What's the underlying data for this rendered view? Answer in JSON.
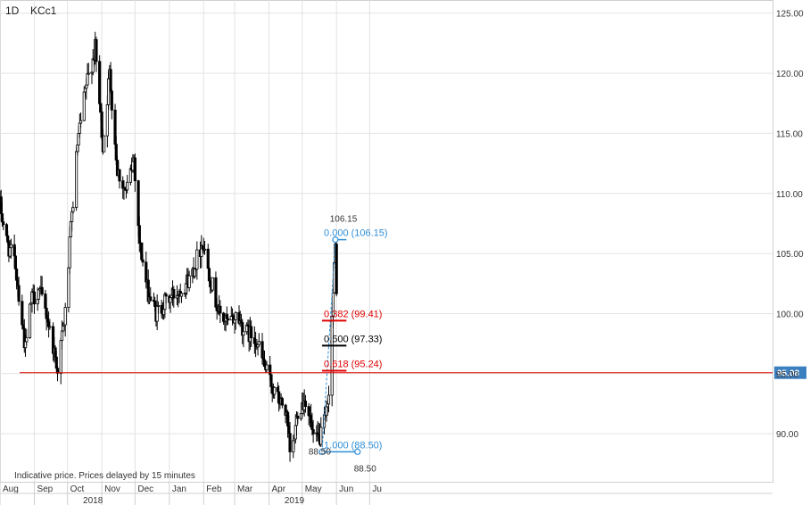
{
  "header": {
    "timeframe": "1D",
    "symbol": "KCc1"
  },
  "footer_note": "Indicative price. Prices delayed by 15 minutes",
  "colors": {
    "grid": "#e3e3e3",
    "candle": "#000000",
    "support": "#e00000",
    "fib_blue": "#2f8fd8",
    "fib_red": "#e00000",
    "fib_black": "#000000",
    "price_badge": "#3a7fc0"
  },
  "chart_data": {
    "type": "candlestick",
    "title": "",
    "x_start": "2017-08-01",
    "x_end": "2019-06-30",
    "ylim": [
      86,
      125.5
    ],
    "y_ticks": [
      "90.00",
      "95.00",
      "100.00",
      "105.00",
      "110.00",
      "115.00",
      "120.00",
      "125.00"
    ],
    "x_ticks": [
      {
        "date": "2017-08-01",
        "label": "Aug"
      },
      {
        "date": "2017-09-01",
        "label": "Sep"
      },
      {
        "date": "2017-10-01",
        "label": "Oct"
      },
      {
        "date": "2017-11-01",
        "label": "Nov"
      },
      {
        "date": "2017-12-01",
        "label": "Dec"
      },
      {
        "date": "2018-01-01",
        "label": "Jan"
      },
      {
        "date": "2018-02-01",
        "label": "Feb"
      },
      {
        "date": "2018-03-01",
        "label": "Mar"
      },
      {
        "date": "2018-04-01",
        "label": "Apr"
      },
      {
        "date": "2018-05-01",
        "label": "May"
      },
      {
        "date": "2018-06-01",
        "label": "Jun"
      },
      {
        "date": "2018-07-01",
        "label": "Ju"
      }
    ],
    "year_labels": [
      {
        "date": "2017-10-15",
        "label": "2018"
      },
      {
        "date": "2018-04-15",
        "label": "2019"
      }
    ],
    "price_path": [
      [
        "2017-08-01",
        109
      ],
      [
        "2017-08-07",
        106
      ],
      [
        "2017-08-15",
        104
      ],
      [
        "2017-08-24",
        97
      ],
      [
        "2017-08-29",
        101
      ],
      [
        "2017-09-05",
        102
      ],
      [
        "2017-09-12",
        100
      ],
      [
        "2017-09-22",
        95.5
      ],
      [
        "2017-09-29",
        100
      ],
      [
        "2017-10-04",
        107
      ],
      [
        "2017-10-10",
        114
      ],
      [
        "2017-10-18",
        119
      ],
      [
        "2017-10-26",
        122
      ],
      [
        "2017-11-02",
        114
      ],
      [
        "2017-11-08",
        120
      ],
      [
        "2017-11-15",
        112
      ],
      [
        "2017-11-23",
        110
      ],
      [
        "2017-11-30",
        113
      ],
      [
        "2017-12-05",
        106
      ],
      [
        "2017-12-12",
        102
      ],
      [
        "2017-12-20",
        100
      ],
      [
        "2017-12-29",
        101
      ],
      [
        "2018-01-10",
        102
      ],
      [
        "2018-01-20",
        103
      ],
      [
        "2018-01-31",
        106
      ],
      [
        "2018-02-07",
        103
      ],
      [
        "2018-02-15",
        100
      ],
      [
        "2018-02-24",
        99
      ],
      [
        "2018-03-03",
        100
      ],
      [
        "2018-03-10",
        98.5
      ],
      [
        "2018-03-20",
        98
      ],
      [
        "2018-03-30",
        95
      ],
      [
        "2018-04-08",
        93
      ],
      [
        "2018-04-16",
        92
      ],
      [
        "2018-04-21",
        87.5
      ],
      [
        "2018-04-27",
        92
      ],
      [
        "2018-05-05",
        93
      ],
      [
        "2018-05-12",
        89
      ],
      [
        "2018-05-19",
        90
      ],
      [
        "2018-05-24",
        92
      ],
      [
        "2018-05-31",
        105.5
      ],
      [
        "2018-06-02",
        99
      ]
    ],
    "support_line": {
      "value": 95.08,
      "label": "95.08"
    },
    "fib": {
      "start": "2018-05-19",
      "end": "2018-06-10",
      "high_label": "106.15",
      "low_label": "88.50",
      "levels": [
        {
          "value": 106.15,
          "label": "0.000 (106.15)",
          "color": "blue"
        },
        {
          "value": 99.41,
          "label": "0.382 (99.41)",
          "color": "red"
        },
        {
          "value": 97.33,
          "label": "0.500 (97.33)",
          "color": "black"
        },
        {
          "value": 95.24,
          "label": "0.618 (95.24)",
          "color": "red"
        },
        {
          "value": 88.5,
          "label": "1.000 (88.50)",
          "color": "blue"
        }
      ]
    }
  }
}
